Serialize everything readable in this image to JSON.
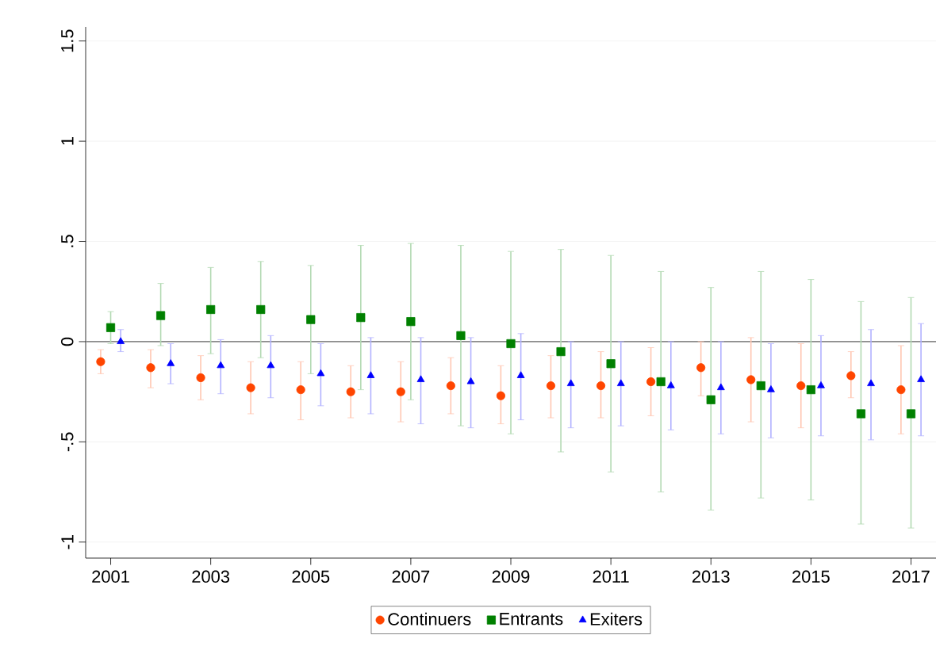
{
  "chart_data": {
    "type": "scatter",
    "xlim": [
      2000.5,
      2017.5
    ],
    "ylim": [
      -1.08,
      1.57
    ],
    "xticks": [
      2001,
      2003,
      2005,
      2007,
      2009,
      2011,
      2013,
      2015,
      2017
    ],
    "yticks": [
      {
        "value": -1,
        "label": "-1"
      },
      {
        "value": -0.5,
        "label": "-.5"
      },
      {
        "value": 0,
        "label": "0"
      },
      {
        "value": 0.5,
        "label": ".5"
      },
      {
        "value": 1,
        "label": "1"
      },
      {
        "value": 1.5,
        "label": "1.5"
      }
    ],
    "grid": "y",
    "legend": "bottom",
    "ref_lines": [
      {
        "axis": "y",
        "value": 0,
        "color": "#8c8c8c"
      }
    ],
    "series": [
      {
        "name": "Continuers",
        "color": "#ff4500",
        "marker": "circle",
        "x": [
          2000.8,
          2001.8,
          2002.8,
          2003.8,
          2004.8,
          2005.8,
          2006.8,
          2007.8,
          2008.8,
          2009.8,
          2010.8,
          2011.8,
          2012.8,
          2013.8,
          2014.8,
          2015.8,
          2016.8
        ],
        "values": [
          -0.1,
          -0.13,
          -0.18,
          -0.23,
          -0.24,
          -0.25,
          -0.25,
          -0.22,
          -0.27,
          -0.22,
          -0.22,
          -0.2,
          -0.13,
          -0.19,
          -0.22,
          -0.17,
          -0.24
        ],
        "errors": [
          [
            -0.16,
            -0.04
          ],
          [
            -0.23,
            -0.04
          ],
          [
            -0.29,
            -0.07
          ],
          [
            -0.36,
            -0.1
          ],
          [
            -0.39,
            -0.1
          ],
          [
            -0.38,
            -0.12
          ],
          [
            -0.4,
            -0.1
          ],
          [
            -0.36,
            -0.08
          ],
          [
            -0.41,
            -0.12
          ],
          [
            -0.38,
            -0.07
          ],
          [
            -0.38,
            -0.05
          ],
          [
            -0.37,
            -0.03
          ],
          [
            -0.27,
            0
          ],
          [
            -0.4,
            0.02
          ],
          [
            -0.43,
            -0.01
          ],
          [
            -0.28,
            -0.05
          ],
          [
            -0.46,
            -0.02
          ]
        ]
      },
      {
        "name": "Entrants",
        "color": "#008000",
        "marker": "square",
        "x": [
          2001,
          2002,
          2003,
          2004,
          2005,
          2006,
          2007,
          2008,
          2009,
          2010,
          2011,
          2012,
          2013,
          2014,
          2015,
          2016,
          2017
        ],
        "values": [
          0.07,
          0.13,
          0.16,
          0.16,
          0.11,
          0.12,
          0.1,
          0.03,
          -0.01,
          -0.05,
          -0.11,
          -0.2,
          -0.29,
          -0.22,
          -0.24,
          -0.36,
          -0.36
        ],
        "errors": [
          [
            -0.01,
            0.15
          ],
          [
            -0.02,
            0.29
          ],
          [
            -0.06,
            0.37
          ],
          [
            -0.08,
            0.4
          ],
          [
            -0.16,
            0.38
          ],
          [
            -0.24,
            0.48
          ],
          [
            -0.29,
            0.49
          ],
          [
            -0.42,
            0.48
          ],
          [
            -0.46,
            0.45
          ],
          [
            -0.55,
            0.46
          ],
          [
            -0.65,
            0.43
          ],
          [
            -0.75,
            0.35
          ],
          [
            -0.84,
            0.27
          ],
          [
            -0.78,
            0.35
          ],
          [
            -0.79,
            0.31
          ],
          [
            -0.91,
            0.2
          ],
          [
            -0.93,
            0.22
          ]
        ]
      },
      {
        "name": "Exiters",
        "color": "#0000ff",
        "marker": "triangle",
        "x": [
          2001.2,
          2002.2,
          2003.2,
          2004.2,
          2005.2,
          2006.2,
          2007.2,
          2008.2,
          2009.2,
          2010.2,
          2011.2,
          2012.2,
          2013.2,
          2014.2,
          2015.2,
          2016.2,
          2017.2
        ],
        "values": [
          0.0,
          -0.11,
          -0.12,
          -0.12,
          -0.16,
          -0.17,
          -0.19,
          -0.2,
          -0.17,
          -0.21,
          -0.21,
          -0.22,
          -0.23,
          -0.24,
          -0.22,
          -0.21,
          -0.19
        ],
        "errors": [
          [
            -0.05,
            0.06
          ],
          [
            -0.21,
            -0.01
          ],
          [
            -0.26,
            0.01
          ],
          [
            -0.28,
            0.03
          ],
          [
            -0.32,
            -0.01
          ],
          [
            -0.36,
            0.02
          ],
          [
            -0.41,
            0.02
          ],
          [
            -0.43,
            0.02
          ],
          [
            -0.39,
            0.04
          ],
          [
            -0.43,
            0
          ],
          [
            -0.42,
            0
          ],
          [
            -0.44,
            0
          ],
          [
            -0.46,
            0
          ],
          [
            -0.48,
            -0.01
          ],
          [
            -0.47,
            0.03
          ],
          [
            -0.49,
            0.06
          ],
          [
            -0.47,
            0.09
          ]
        ]
      }
    ]
  }
}
